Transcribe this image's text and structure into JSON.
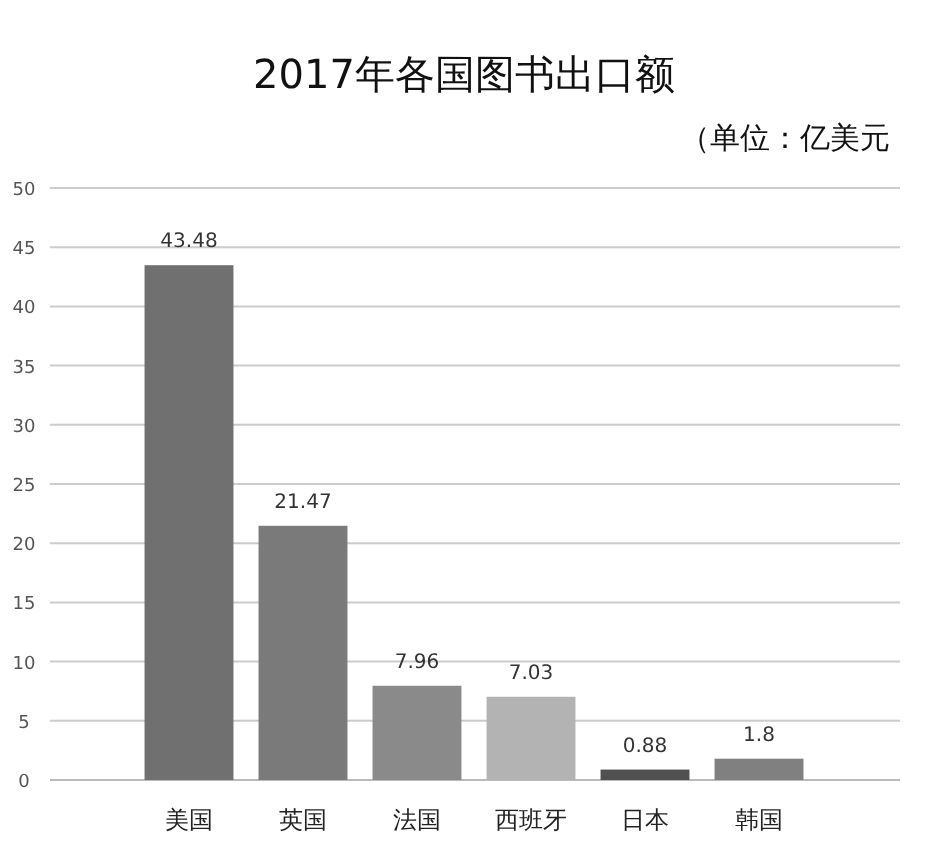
{
  "chart_data": {
    "type": "bar",
    "title": "2017年各国图书出口额",
    "subtitle": "（单位：亿美元",
    "categories": [
      "美国",
      "英国",
      "法国",
      "西班牙",
      "日本",
      "韩国"
    ],
    "values": [
      43.48,
      21.47,
      7.96,
      7.03,
      0.88,
      1.8
    ],
    "colors": [
      "#707070",
      "#7a7a7a",
      "#8a8a8a",
      "#b3b3b3",
      "#505050",
      "#808080"
    ],
    "ylim": [
      0,
      50
    ],
    "yticks": [
      0,
      5,
      10,
      15,
      20,
      25,
      30,
      35,
      40,
      45,
      50
    ],
    "grid": "y",
    "data_labels": true
  }
}
